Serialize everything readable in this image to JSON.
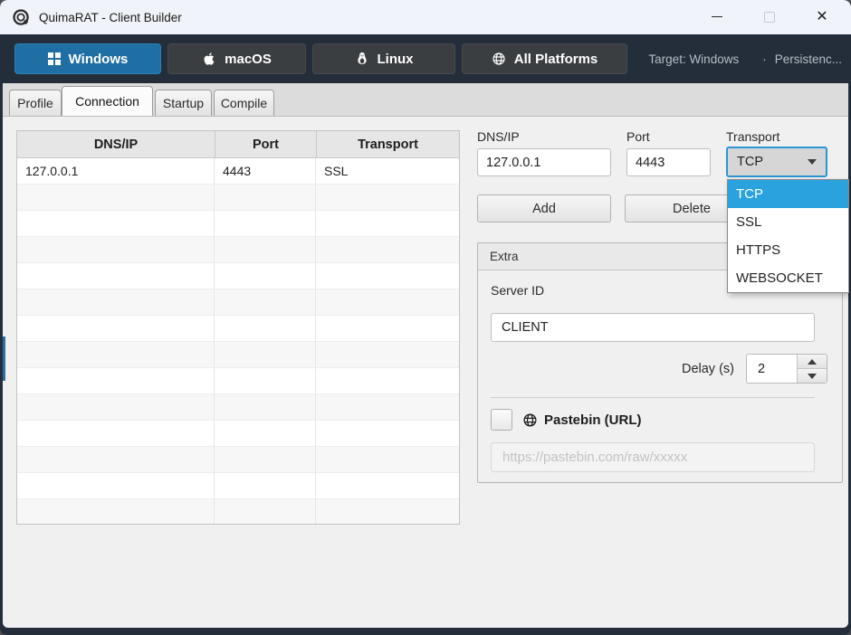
{
  "window": {
    "title": "QuimaRAT - Client Builder",
    "controls": [
      "minimize",
      "maximize",
      "close"
    ]
  },
  "toolbar": {
    "platforms": [
      {
        "label": "Windows",
        "icon": "windows-icon",
        "active": true
      },
      {
        "label": "macOS",
        "icon": "apple-icon",
        "active": false
      },
      {
        "label": "Linux",
        "icon": "linux-penguin-icon",
        "active": false
      },
      {
        "label": "All Platforms",
        "icon": "globe-icon",
        "active": false
      }
    ],
    "status": {
      "target": "Target: Windows",
      "separator": "·",
      "persistence": "Persistenc..."
    }
  },
  "tabs": [
    {
      "label": "Profile",
      "active": false
    },
    {
      "label": "Connection",
      "active": true
    },
    {
      "label": "Startup",
      "active": false
    },
    {
      "label": "Compile",
      "active": false
    }
  ],
  "hosts_table": {
    "columns": [
      "DNS/IP",
      "Port",
      "Transport"
    ],
    "rows": [
      [
        "127.0.0.1",
        "4443",
        "SSL"
      ]
    ],
    "empty_row_count": 13
  },
  "form": {
    "dns_label": "DNS/IP",
    "dns_value": "127.0.0.1",
    "port_label": "Port",
    "port_value": "4443",
    "transport_label": "Transport",
    "transport_value": "TCP",
    "transport_options": [
      "TCP",
      "SSL",
      "HTTPS",
      "WEBSOCKET"
    ],
    "transport_selected": "TCP",
    "add_label": "Add",
    "delete_label": "Delete"
  },
  "extra": {
    "title": "Extra",
    "server_id_label": "Server ID",
    "server_id_value": "CLIENT",
    "delay_label": "Delay (s)",
    "delay_value": "2",
    "pastebin_checked": false,
    "pastebin_label": "Pastebin (URL)",
    "pastebin_placeholder": "https://pastebin.com/raw/xxxxx"
  },
  "colors": {
    "toolbar_bg": "#242e3a",
    "accent_blue": "#1f6fa5",
    "dropdown_highlight": "#2aa2dd",
    "focus_border": "#2b96d4",
    "titlebar_bg": "#f0f3f9",
    "content_bg": "#f0f0f0"
  }
}
